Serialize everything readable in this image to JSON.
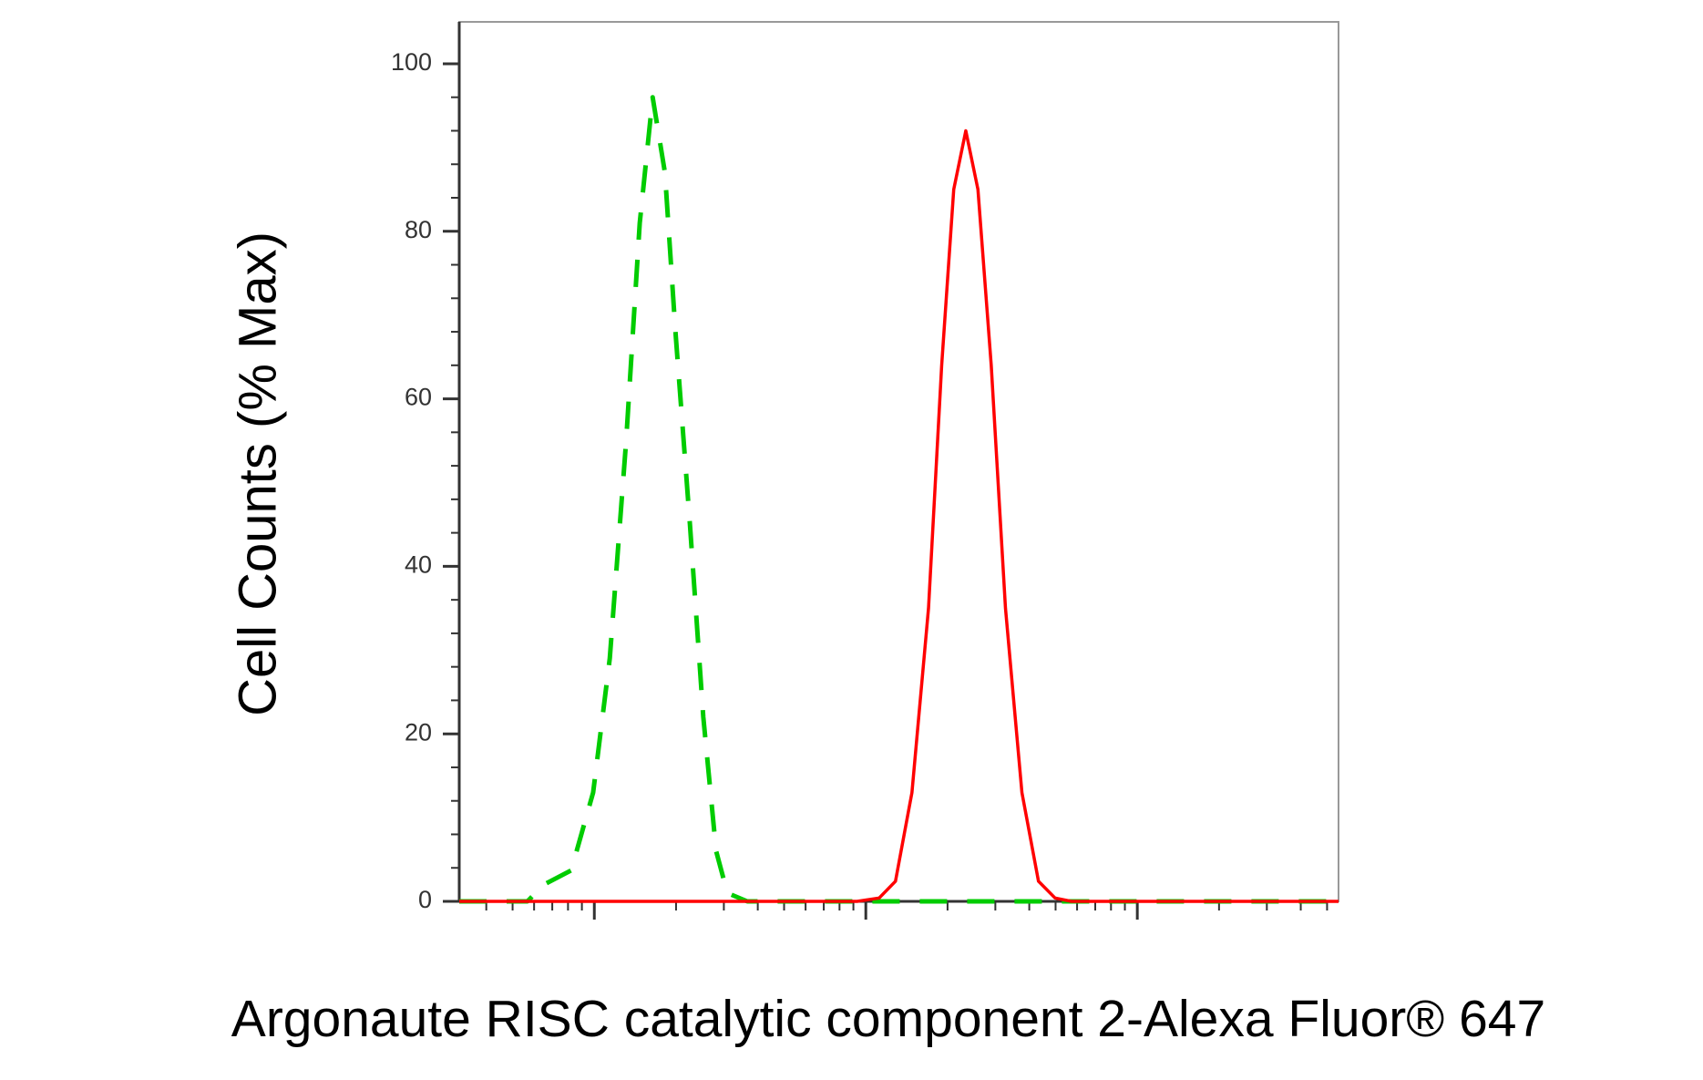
{
  "chart_data": {
    "type": "line",
    "x_label": "Argonaute RISC catalytic component 2-Alexa Fluor® 647",
    "y_label": "Cell Counts (% Max)",
    "x_log": true,
    "xlim": [
      31.8,
      55100
    ],
    "x_major_ticks": [
      100,
      1000,
      10000
    ],
    "ylim": [
      0,
      105
    ],
    "yticks": [
      0,
      20,
      40,
      60,
      80,
      100
    ],
    "series": [
      {
        "color": "#00cc00",
        "dashed": true,
        "x": [
          31.8,
          56.7,
          65.2,
          82.2,
          99,
          114,
          131,
          147,
          164,
          182,
          199,
          225,
          252,
          281,
          309,
          366,
          1120,
          7210,
          55100
        ],
        "values": [
          0,
          0,
          2,
          3.7,
          13,
          29,
          55,
          81,
          96,
          87,
          68,
          45,
          22,
          6,
          1,
          0,
          0,
          0,
          0
        ]
      },
      {
        "color": "#ff0000",
        "dashed": false,
        "x": [
          31.8,
          929,
          1120,
          1286,
          1479,
          1702,
          1903,
          2108,
          2335,
          2588,
          2897,
          3269,
          3758,
          4325,
          4977,
          5718,
          55100
        ],
        "values": [
          0,
          0,
          0.4,
          2.4,
          13,
          35,
          64,
          85,
          92,
          85,
          64,
          35,
          13,
          2.4,
          0.4,
          0,
          0
        ]
      }
    ]
  }
}
